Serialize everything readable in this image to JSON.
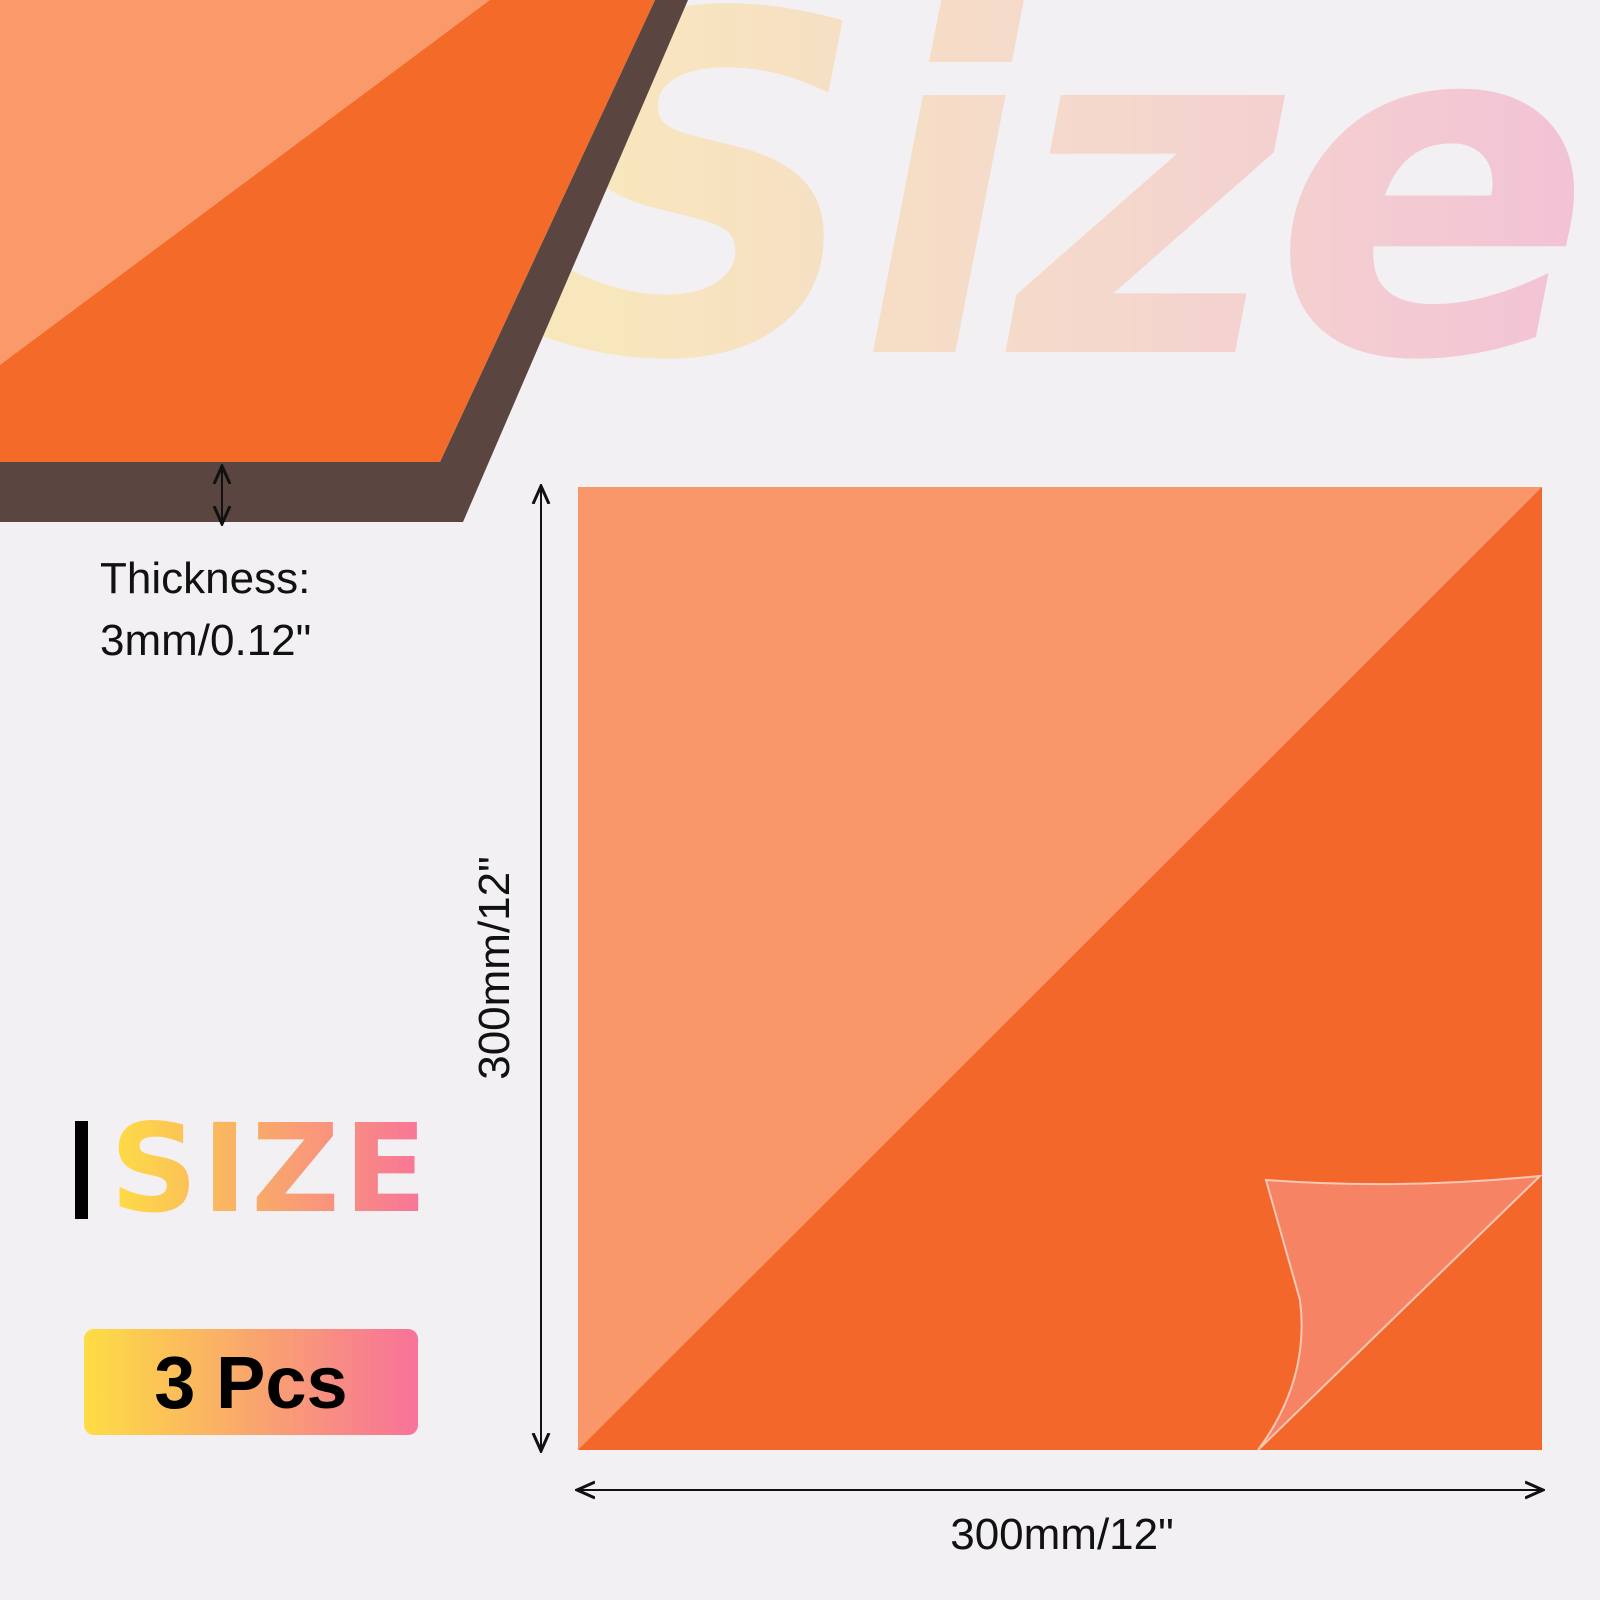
{
  "watermark": "Size",
  "thickness": {
    "label": "Thickness:",
    "value": "3mm/0.12\""
  },
  "dimensions": {
    "height": "300mm/12\"",
    "width": "300mm/12\""
  },
  "logo": {
    "title": "SIZE"
  },
  "badge": {
    "label": "3 Pcs"
  },
  "colors": {
    "sheet_light": "#f9976a",
    "sheet_dark": "#f4672a",
    "edge": "#5a4540",
    "gradient_start": "#fedd44",
    "gradient_end": "#f8729a"
  }
}
